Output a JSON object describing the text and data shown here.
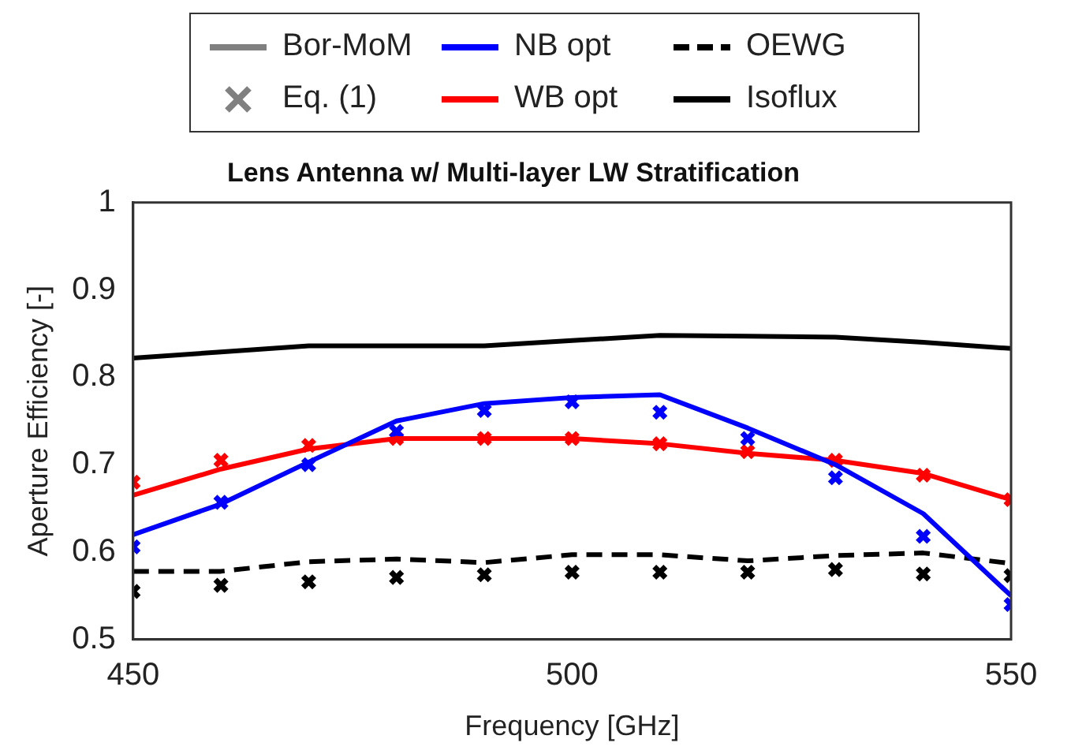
{
  "chart_data": {
    "type": "line",
    "title": "Lens Antenna w/ Multi-layer LW Stratification",
    "xlabel": "Frequency [GHz]",
    "ylabel": "Aperture Efficiency [-]",
    "x": [
      450,
      460,
      470,
      480,
      490,
      500,
      510,
      520,
      530,
      540,
      550
    ],
    "xlim": [
      450,
      550
    ],
    "xticks": [
      450,
      500,
      550
    ],
    "ylim": [
      0.5,
      1
    ],
    "yticks": [
      0.5,
      0.6,
      0.7,
      0.8,
      0.9,
      1
    ],
    "grid": false,
    "legend": "top",
    "series": [
      {
        "name": "Bor-MoM",
        "color": "#808080",
        "marker": "none",
        "line_style": "solid",
        "values": [
          null,
          null,
          null,
          null,
          null,
          null,
          null,
          null,
          null,
          null,
          null
        ]
      },
      {
        "name": "Eq. (1)",
        "color": "#808080",
        "type": "scatter",
        "marker": "cross",
        "values": [
          null,
          null,
          null,
          null,
          null,
          null,
          null,
          null,
          null,
          null,
          null
        ]
      },
      {
        "name": "NB opt",
        "color": "#0000ff",
        "marker": "none",
        "line_style": "solid",
        "values": [
          0.62,
          0.655,
          0.703,
          0.75,
          0.77,
          0.777,
          0.78,
          0.742,
          0.7,
          0.644,
          0.55
        ]
      },
      {
        "name": "WB opt",
        "color": "#ff0000",
        "marker": "none",
        "line_style": "solid",
        "values": [
          0.665,
          0.695,
          0.718,
          0.73,
          0.73,
          0.73,
          0.724,
          0.713,
          0.705,
          0.69,
          0.66
        ]
      },
      {
        "name": "OEWG",
        "color": "#000000",
        "marker": "none",
        "line_style": "dashed",
        "values": [
          0.578,
          0.578,
          0.589,
          0.592,
          0.588,
          0.597,
          0.597,
          0.59,
          0.596,
          0.599,
          0.587
        ]
      },
      {
        "name": "Isoflux",
        "color": "#000000",
        "marker": "none",
        "line_style": "solid",
        "values": [
          0.822,
          0.829,
          0.836,
          0.836,
          0.836,
          0.842,
          0.848,
          0.847,
          0.846,
          0.84,
          0.833
        ]
      },
      {
        "color": "#0000ff",
        "type": "scatter",
        "marker": "cross",
        "values": [
          0.606,
          0.657,
          0.7,
          0.738,
          0.762,
          0.772,
          0.76,
          0.73,
          0.685,
          0.618,
          0.54
        ]
      },
      {
        "color": "#ff0000",
        "type": "scatter",
        "marker": "cross",
        "values": [
          0.68,
          0.705,
          0.722,
          0.73,
          0.73,
          0.73,
          0.724,
          0.715,
          0.705,
          0.688,
          0.66
        ]
      },
      {
        "color": "#000000",
        "type": "scatter",
        "marker": "cross",
        "values": [
          0.555,
          0.562,
          0.566,
          0.571,
          0.574,
          0.577,
          0.577,
          0.577,
          0.58,
          0.575,
          0.573
        ]
      }
    ]
  }
}
